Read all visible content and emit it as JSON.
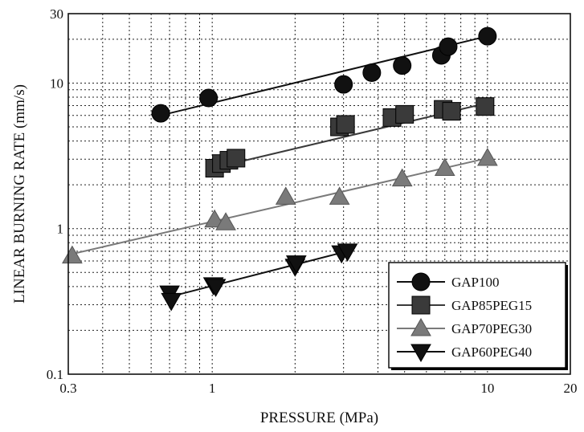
{
  "chart_data": {
    "type": "scatter",
    "xscale": "log",
    "yscale": "log",
    "xlim": [
      0.3,
      20
    ],
    "ylim": [
      0.1,
      30
    ],
    "xlabel": "PRESSURE (MPa)",
    "ylabel": "LINEAR BURNING RATE (mm/s)",
    "x_ticks": [
      0.3,
      1,
      10,
      20
    ],
    "x_tick_labels": [
      "0.3",
      "1",
      "10",
      "20"
    ],
    "y_ticks": [
      0.1,
      1,
      10,
      30
    ],
    "y_tick_labels": [
      "0.1",
      "1",
      "10",
      "30"
    ],
    "grid": true,
    "legend_position": "bottom-right",
    "series": [
      {
        "name": "GAP100",
        "marker": "circle",
        "color": "#111111",
        "x": [
          0.65,
          0.97,
          3.0,
          3.8,
          4.9,
          6.8,
          7.2,
          10.0
        ],
        "y": [
          6.2,
          7.9,
          9.8,
          11.8,
          13.2,
          15.5,
          17.8,
          21.0
        ],
        "fit_x": [
          0.65,
          10.0
        ],
        "fit_y": [
          6.0,
          21.0
        ]
      },
      {
        "name": "GAP85PEG15",
        "marker": "square",
        "color": "#3a3a3a",
        "x": [
          1.02,
          1.08,
          1.15,
          1.22,
          2.9,
          3.05,
          4.5,
          5.0,
          6.9,
          7.4,
          9.8
        ],
        "y": [
          2.6,
          2.8,
          2.95,
          3.05,
          5.0,
          5.2,
          5.8,
          6.1,
          6.6,
          6.4,
          6.9
        ],
        "fit_x": [
          1.0,
          10.0
        ],
        "fit_y": [
          2.6,
          7.3
        ]
      },
      {
        "name": "GAP70PEG30",
        "marker": "triangle-up",
        "color": "#7a7a7a",
        "x": [
          0.31,
          1.02,
          1.12,
          1.85,
          2.9,
          4.9,
          7.0,
          10.0
        ],
        "y": [
          0.65,
          1.15,
          1.1,
          1.65,
          1.65,
          2.2,
          2.6,
          3.05
        ],
        "fit_x": [
          0.31,
          10.0
        ],
        "fit_y": [
          0.67,
          3.05
        ]
      },
      {
        "name": "GAP60PEG40",
        "marker": "triangle-down",
        "color": "#111111",
        "x": [
          0.7,
          0.71,
          1.01,
          1.03,
          2.0,
          2.02,
          2.95,
          3.1
        ],
        "y": [
          0.36,
          0.32,
          0.41,
          0.4,
          0.55,
          0.58,
          0.68,
          0.7
        ],
        "fit_x": [
          0.7,
          3.1
        ],
        "fit_y": [
          0.34,
          0.7
        ]
      }
    ]
  }
}
